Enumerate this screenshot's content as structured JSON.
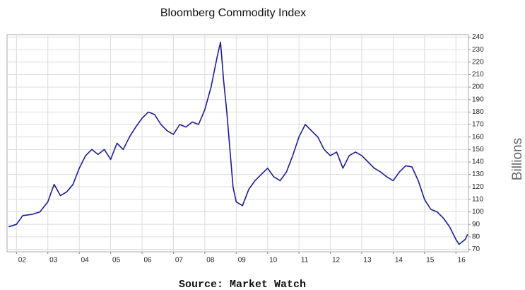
{
  "chart_data": {
    "type": "line",
    "title": "Bloomberg Commodity Index",
    "y_label": "Billions",
    "source": "Source: Market Watch",
    "color": "#1c1c8e",
    "grid": true,
    "x": [
      2001.75,
      2002.0,
      2002.2,
      2002.5,
      2002.75,
      2003.0,
      2003.2,
      2003.4,
      2003.6,
      2003.8,
      2004.0,
      2004.2,
      2004.4,
      2004.6,
      2004.8,
      2005.0,
      2005.2,
      2005.4,
      2005.6,
      2005.8,
      2006.0,
      2006.2,
      2006.4,
      2006.6,
      2006.8,
      2007.0,
      2007.2,
      2007.4,
      2007.6,
      2007.8,
      2008.0,
      2008.2,
      2008.4,
      2008.5,
      2008.6,
      2008.7,
      2008.8,
      2008.9,
      2009.0,
      2009.2,
      2009.4,
      2009.6,
      2009.8,
      2010.0,
      2010.2,
      2010.4,
      2010.6,
      2010.8,
      2011.0,
      2011.2,
      2011.4,
      2011.6,
      2011.8,
      2012.0,
      2012.2,
      2012.4,
      2012.6,
      2012.8,
      2013.0,
      2013.2,
      2013.4,
      2013.6,
      2013.8,
      2014.0,
      2014.2,
      2014.4,
      2014.6,
      2014.8,
      2015.0,
      2015.2,
      2015.4,
      2015.6,
      2015.8,
      2016.0,
      2016.1,
      2016.3,
      2016.37
    ],
    "values": [
      88,
      90,
      97,
      98,
      100,
      108,
      122,
      113,
      116,
      122,
      135,
      145,
      150,
      146,
      150,
      142,
      155,
      150,
      160,
      168,
      175,
      180,
      178,
      170,
      165,
      162,
      170,
      168,
      172,
      170,
      182,
      200,
      225,
      236,
      205,
      180,
      150,
      120,
      108,
      105,
      118,
      125,
      130,
      135,
      128,
      125,
      132,
      145,
      160,
      170,
      165,
      160,
      150,
      145,
      148,
      135,
      145,
      148,
      145,
      140,
      135,
      132,
      128,
      125,
      132,
      137,
      136,
      125,
      110,
      102,
      100,
      95,
      88,
      78,
      74,
      78,
      82
    ],
    "xlim": [
      2001.7,
      2016.4
    ],
    "xticks": [
      {
        "value": 2002,
        "label": "02"
      },
      {
        "value": 2003,
        "label": "03"
      },
      {
        "value": 2004,
        "label": "04"
      },
      {
        "value": 2005,
        "label": "05"
      },
      {
        "value": 2006,
        "label": "06"
      },
      {
        "value": 2007,
        "label": "07"
      },
      {
        "value": 2008,
        "label": "08"
      },
      {
        "value": 2009,
        "label": "09"
      },
      {
        "value": 2010,
        "label": "10"
      },
      {
        "value": 2011,
        "label": "11"
      },
      {
        "value": 2012,
        "label": "12"
      },
      {
        "value": 2013,
        "label": "13"
      },
      {
        "value": 2014,
        "label": "14"
      },
      {
        "value": 2015,
        "label": "15"
      },
      {
        "value": 2016,
        "label": "16"
      }
    ],
    "ylim": [
      68,
      242
    ],
    "yticks": [
      70,
      80,
      90,
      100,
      110,
      120,
      130,
      140,
      150,
      160,
      170,
      180,
      190,
      200,
      210,
      220,
      230,
      240
    ]
  }
}
